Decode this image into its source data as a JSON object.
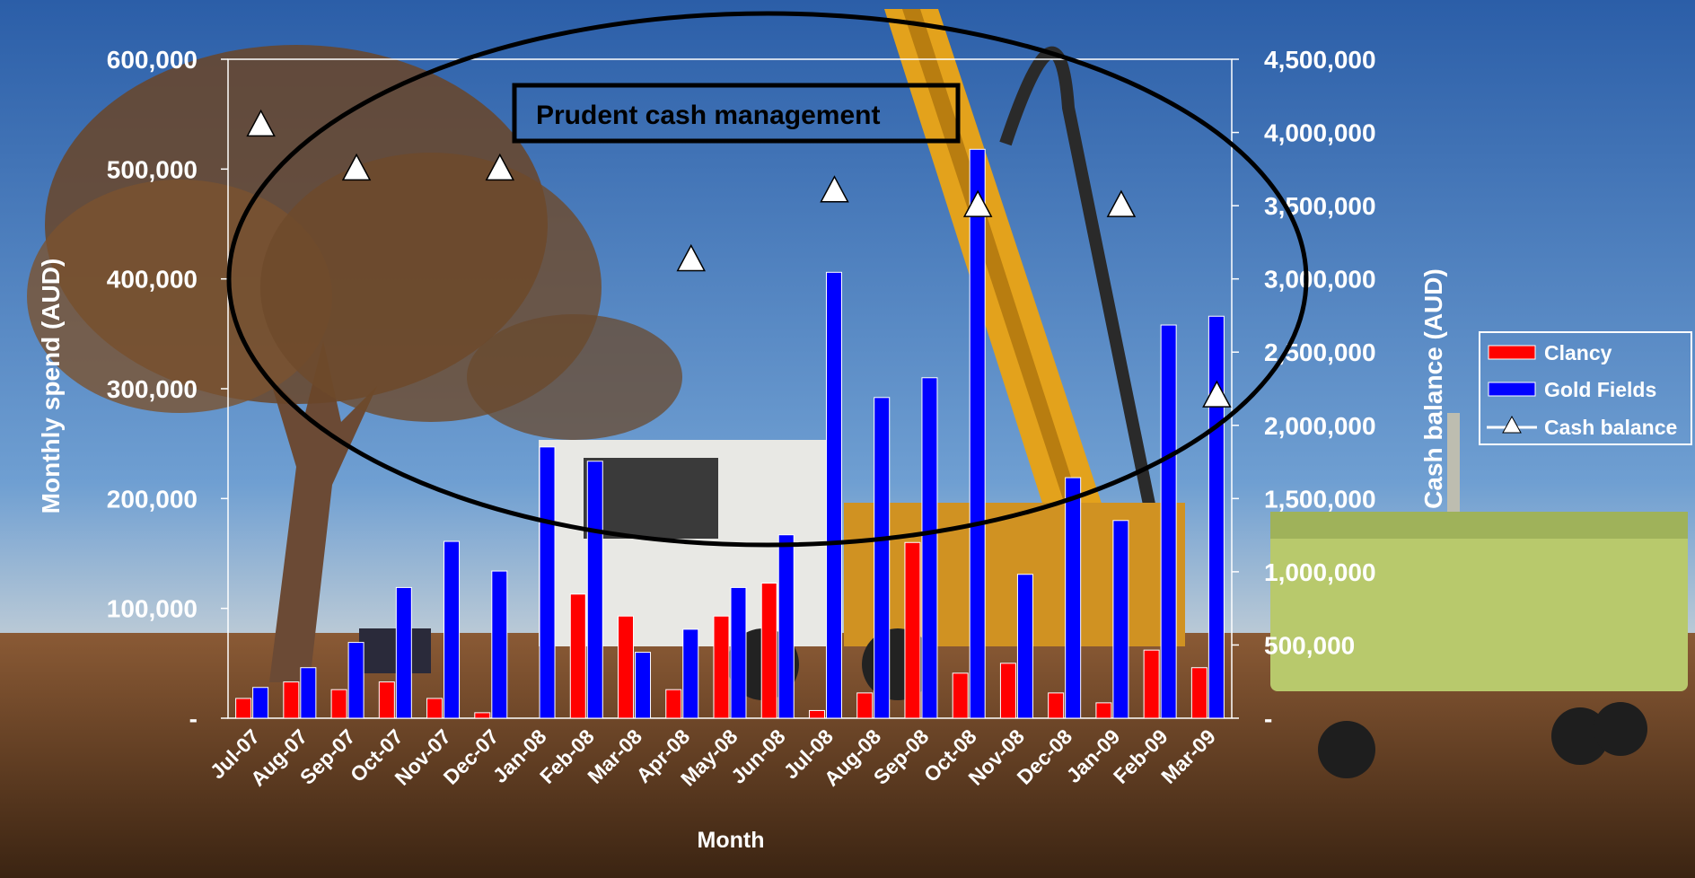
{
  "chart_data": {
    "type": "bar",
    "title": "",
    "annotation": "Prudent cash management",
    "xlabel": "Month",
    "ylabel_left": "Monthly spend (AUD)",
    "ylabel_right": "Cash balance (AUD)",
    "categories": [
      "Jul-07",
      "Aug-07",
      "Sep-07",
      "Oct-07",
      "Nov-07",
      "Dec-07",
      "Jan-08",
      "Feb-08",
      "Mar-08",
      "Apr-08",
      "May-08",
      "Jun-08",
      "Jul-08",
      "Aug-08",
      "Sep-08",
      "Oct-08",
      "Nov-08",
      "Dec-08",
      "Jan-09",
      "Feb-09",
      "Mar-09"
    ],
    "ylim_left": [
      0,
      600000
    ],
    "ylim_right": [
      0,
      4500000
    ],
    "yticks_left": [
      "-",
      "100,000",
      "200,000",
      "300,000",
      "400,000",
      "500,000",
      "600,000"
    ],
    "yticks_right": [
      "-",
      "500,000",
      "1,000,000",
      "1,500,000",
      "2,000,000",
      "2,500,000",
      "3,000,000",
      "3,500,000",
      "4,000,000",
      "4,500,000"
    ],
    "series": [
      {
        "name": "Clancy",
        "color": "#ff0000",
        "axis": "left",
        "values": [
          18000,
          33000,
          26000,
          33000,
          18000,
          5000,
          0,
          113000,
          93000,
          26000,
          93000,
          123000,
          7000,
          23000,
          160000,
          41000,
          50000,
          23000,
          14000,
          62000,
          46000
        ]
      },
      {
        "name": "Gold Fields",
        "color": "#0000ff",
        "axis": "left",
        "values": [
          28000,
          46000,
          69000,
          119000,
          161000,
          134000,
          247000,
          234000,
          60000,
          81000,
          119000,
          167000,
          406000,
          292000,
          310000,
          518000,
          131000,
          219000,
          180000,
          358000,
          366000
        ]
      },
      {
        "name": "Cash balance",
        "type": "line",
        "marker": "triangle",
        "axis": "right",
        "values": [
          4050000,
          null,
          3750000,
          null,
          null,
          3750000,
          null,
          null,
          null,
          3130000,
          null,
          null,
          3600000,
          null,
          null,
          3500000,
          null,
          null,
          3500000,
          null,
          2200000
        ]
      }
    ],
    "legend": "right",
    "grid": false
  }
}
